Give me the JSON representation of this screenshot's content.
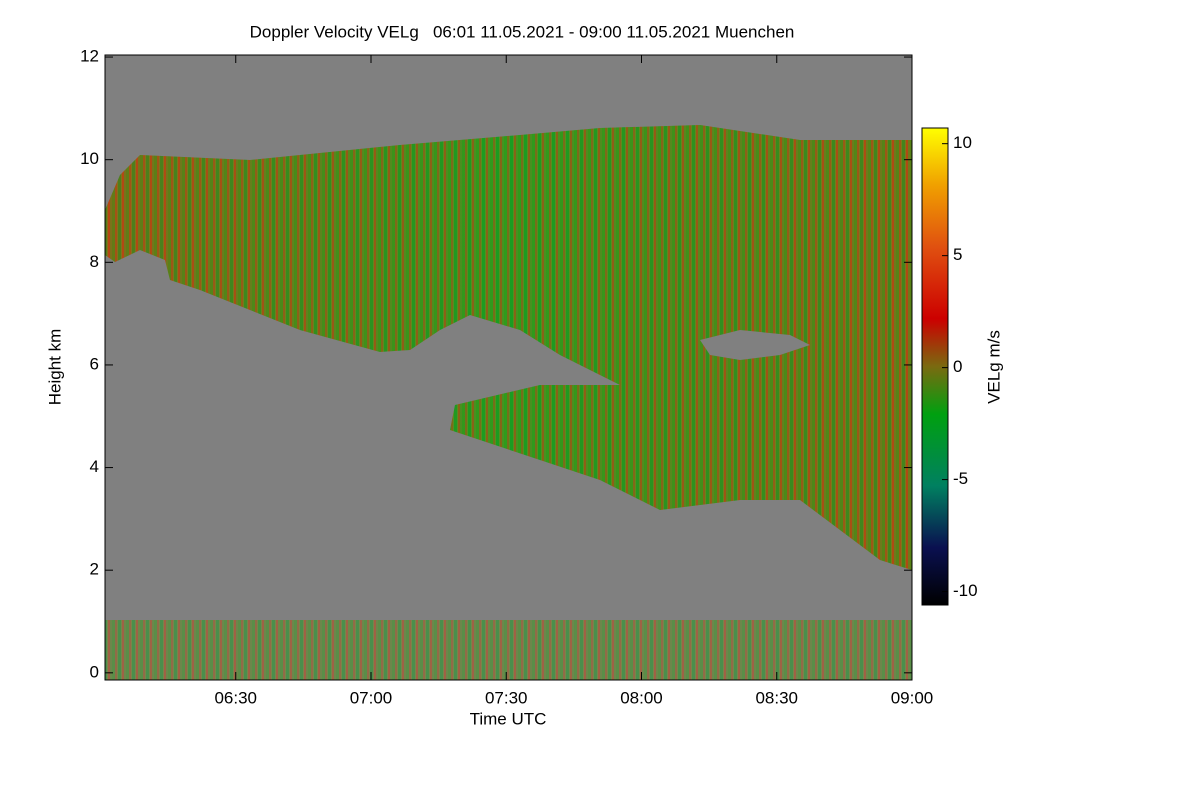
{
  "chart_data": {
    "type": "heatmap",
    "title": "Doppler Velocity VELg   06:01 11.05.2021 - 09:00 11.05.2021 Muenchen",
    "x_label": "Time UTC",
    "y_label": "Height km",
    "colorbar_label": "VELg m/s",
    "xlim": [
      361,
      540
    ],
    "xticks": [
      {
        "value": 390,
        "label": "06:30"
      },
      {
        "value": 420,
        "label": "07:00"
      },
      {
        "value": 450,
        "label": "07:30"
      },
      {
        "value": 480,
        "label": "08:00"
      },
      {
        "value": 510,
        "label": "08:30"
      },
      {
        "value": 540,
        "label": "09:00"
      }
    ],
    "ylim": [
      -0.14,
      12.04
    ],
    "yticks": [
      0,
      2,
      4,
      6,
      8,
      10,
      12
    ],
    "clim": [
      -10.6,
      10.7
    ],
    "cticks": [
      -10,
      -5,
      0,
      5,
      10
    ]
  }
}
